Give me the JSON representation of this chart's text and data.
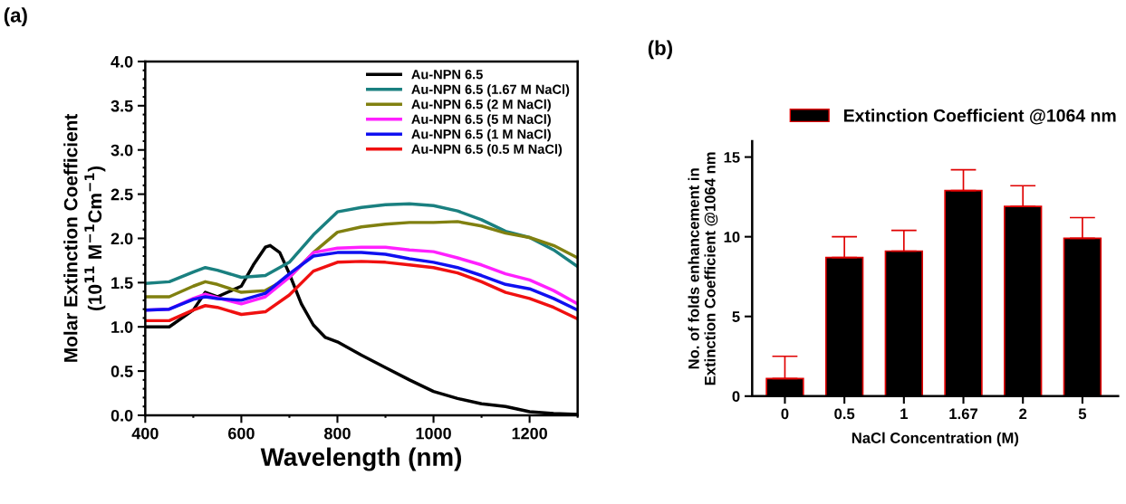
{
  "chart_data": [
    {
      "type": "line",
      "xlabel": "Wavelength (nm)",
      "ylabel": "Molar Extinction Coefficient\n(10$^{11}$ M$^{−1}$Cm$^{−1}$)",
      "annotations": [
        "(a)"
      ],
      "x": [
        400,
        450,
        500,
        525,
        550,
        600,
        650,
        700,
        750,
        800,
        850,
        900,
        950,
        1000,
        1050,
        1100,
        1150,
        1200,
        1250,
        1300
      ],
      "xlim": [
        400,
        1300
      ],
      "xticks": [
        400,
        600,
        800,
        1000,
        1200
      ],
      "ylim": [
        0,
        4
      ],
      "yticks": [
        {
          "value": 0,
          "label": "0.0"
        },
        0.5,
        {
          "value": 1,
          "label": "1.0"
        },
        1.5,
        {
          "value": 2,
          "label": "2.0"
        },
        2.5,
        {
          "value": 3,
          "label": "3.0"
        },
        3.5,
        {
          "value": 4,
          "label": "4.0"
        }
      ],
      "legend": "top right",
      "marker": "none",
      "line_style": "solid",
      "series": [
        {
          "name": "Au-NPN 6.5",
          "color": "#000000",
          "x": [
            400,
            450,
            500,
            525,
            550,
            600,
            625,
            650,
            660,
            680,
            700,
            725,
            750,
            775,
            800,
            850,
            900,
            950,
            1000,
            1050,
            1100,
            1150,
            1200,
            1250,
            1300
          ],
          "values": [
            1.0,
            1.0,
            1.19,
            1.39,
            1.34,
            1.46,
            1.7,
            1.9,
            1.92,
            1.84,
            1.6,
            1.26,
            1.02,
            0.88,
            0.83,
            0.68,
            0.54,
            0.4,
            0.27,
            0.19,
            0.13,
            0.1,
            0.04,
            0.02,
            0.01
          ]
        },
        {
          "name": "Au-NPN 6.5 (1.67 M NaCl)",
          "color": "#1a8080",
          "values": [
            1.49,
            1.51,
            1.62,
            1.67,
            1.64,
            1.56,
            1.58,
            1.73,
            2.04,
            2.3,
            2.35,
            2.38,
            2.39,
            2.37,
            2.31,
            2.21,
            2.08,
            2.01,
            1.87,
            1.68
          ]
        },
        {
          "name": "Au-NPN 6.5 (2 M NaCl)",
          "color": "#808010",
          "values": [
            1.34,
            1.34,
            1.46,
            1.51,
            1.48,
            1.39,
            1.41,
            1.56,
            1.84,
            2.07,
            2.13,
            2.16,
            2.18,
            2.18,
            2.19,
            2.14,
            2.06,
            2.01,
            1.92,
            1.78
          ]
        },
        {
          "name": "Au-NPN 6.5 (5 M NaCl)",
          "color": "#ff20ff",
          "values": [
            1.19,
            1.2,
            1.32,
            1.37,
            1.33,
            1.26,
            1.34,
            1.56,
            1.84,
            1.89,
            1.9,
            1.9,
            1.87,
            1.85,
            1.78,
            1.7,
            1.6,
            1.53,
            1.41,
            1.26
          ]
        },
        {
          "name": "Au-NPN 6.5 (1 M NaCl)",
          "color": "#1010f0",
          "values": [
            1.19,
            1.2,
            1.31,
            1.34,
            1.32,
            1.3,
            1.38,
            1.6,
            1.8,
            1.84,
            1.84,
            1.82,
            1.77,
            1.73,
            1.67,
            1.58,
            1.48,
            1.43,
            1.32,
            1.19
          ]
        },
        {
          "name": "Au-NPN 6.5 (0.5 M NaCl)",
          "color": "#f01010",
          "values": [
            1.07,
            1.07,
            1.19,
            1.24,
            1.22,
            1.14,
            1.17,
            1.36,
            1.63,
            1.73,
            1.74,
            1.73,
            1.7,
            1.67,
            1.61,
            1.51,
            1.39,
            1.32,
            1.22,
            1.09
          ]
        }
      ]
    },
    {
      "type": "bar",
      "xlabel": "NaCl Concentration (M)",
      "ylabel": "No. of folds enhancement in\nExtinction Coefficient @1064 nm",
      "annotations": [
        "(b)"
      ],
      "categories": [
        "0",
        "0.5",
        "1",
        "1.67",
        "2",
        "5"
      ],
      "ylim": [
        0,
        16
      ],
      "yticks": [
        0,
        5,
        10,
        15
      ],
      "legend": "top",
      "series": [
        {
          "name": "Extinction Coefficient @1064 nm",
          "color": "#000000",
          "values": [
            1.1,
            8.7,
            9.1,
            12.9,
            11.9,
            9.9
          ],
          "errors": [
            [
              1.1,
              2.5
            ],
            [
              8.7,
              10.0
            ],
            [
              9.1,
              10.4
            ],
            [
              12.9,
              14.2
            ],
            [
              11.9,
              13.2
            ],
            [
              9.9,
              11.2
            ]
          ]
        }
      ]
    }
  ]
}
